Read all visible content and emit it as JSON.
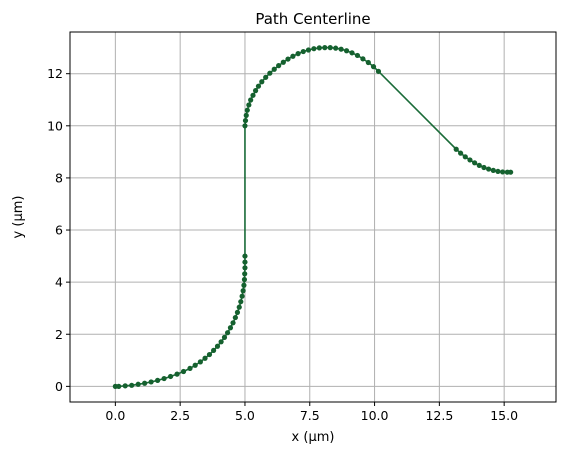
{
  "chart_data": {
    "type": "line",
    "title": "Path Centerline",
    "xlabel": "x (µm)",
    "ylabel": "y (µm)",
    "xlim": [
      -1.75,
      17.0
    ],
    "ylim": [
      -0.6,
      13.6
    ],
    "xticks": [
      0.0,
      2.5,
      5.0,
      7.5,
      10.0,
      12.5,
      15.0
    ],
    "xtick_labels": [
      "0.0",
      "2.5",
      "5.0",
      "7.5",
      "10.0",
      "12.5",
      "15.0"
    ],
    "yticks": [
      0,
      2,
      4,
      6,
      8,
      10,
      12
    ],
    "ytick_labels": [
      "0",
      "2",
      "4",
      "6",
      "8",
      "10",
      "12"
    ],
    "grid": true,
    "colors": {
      "line": "#1a6b38",
      "marker": "#15612f",
      "grid": "#b0b0b0"
    },
    "series": [
      {
        "points": [
          [
            0.0,
            0.0
          ],
          [
            0.13,
            0.0
          ],
          [
            0.38,
            0.02
          ],
          [
            0.63,
            0.04
          ],
          [
            0.88,
            0.08
          ],
          [
            1.13,
            0.12
          ],
          [
            1.38,
            0.17
          ],
          [
            1.63,
            0.23
          ],
          [
            1.88,
            0.3
          ],
          [
            2.13,
            0.38
          ],
          [
            2.38,
            0.47
          ],
          [
            2.63,
            0.57
          ],
          [
            2.88,
            0.69
          ],
          [
            3.08,
            0.81
          ],
          [
            3.28,
            0.94
          ],
          [
            3.46,
            1.08
          ],
          [
            3.63,
            1.22
          ],
          [
            3.79,
            1.38
          ],
          [
            3.94,
            1.54
          ],
          [
            4.08,
            1.71
          ],
          [
            4.21,
            1.88
          ],
          [
            4.33,
            2.06
          ],
          [
            4.44,
            2.25
          ],
          [
            4.54,
            2.44
          ],
          [
            4.63,
            2.64
          ],
          [
            4.71,
            2.84
          ],
          [
            4.78,
            3.04
          ],
          [
            4.84,
            3.25
          ],
          [
            4.89,
            3.46
          ],
          [
            4.93,
            3.67
          ],
          [
            4.96,
            3.88
          ],
          [
            4.98,
            4.1
          ],
          [
            4.99,
            4.32
          ],
          [
            5.0,
            4.55
          ],
          [
            5.0,
            4.77
          ],
          [
            5.0,
            5.0
          ],
          [
            5.0,
            10.0
          ],
          [
            5.02,
            10.2
          ],
          [
            5.05,
            10.4
          ],
          [
            5.09,
            10.6
          ],
          [
            5.15,
            10.8
          ],
          [
            5.22,
            10.99
          ],
          [
            5.31,
            11.17
          ],
          [
            5.41,
            11.35
          ],
          [
            5.52,
            11.52
          ],
          [
            5.65,
            11.69
          ],
          [
            5.8,
            11.86
          ],
          [
            5.96,
            12.02
          ],
          [
            6.13,
            12.17
          ],
          [
            6.3,
            12.31
          ],
          [
            6.48,
            12.44
          ],
          [
            6.66,
            12.56
          ],
          [
            6.85,
            12.67
          ],
          [
            7.05,
            12.77
          ],
          [
            7.25,
            12.85
          ],
          [
            7.45,
            12.91
          ],
          [
            7.66,
            12.96
          ],
          [
            7.87,
            12.99
          ],
          [
            8.08,
            13.0
          ],
          [
            8.29,
            13.0
          ],
          [
            8.5,
            12.98
          ],
          [
            8.71,
            12.94
          ],
          [
            8.92,
            12.88
          ],
          [
            9.13,
            12.8
          ],
          [
            9.34,
            12.7
          ],
          [
            9.55,
            12.57
          ],
          [
            9.76,
            12.43
          ],
          [
            9.96,
            12.27
          ],
          [
            10.15,
            12.09
          ],
          [
            13.15,
            9.1
          ],
          [
            13.32,
            8.95
          ],
          [
            13.5,
            8.81
          ],
          [
            13.68,
            8.69
          ],
          [
            13.86,
            8.58
          ],
          [
            14.04,
            8.48
          ],
          [
            14.22,
            8.4
          ],
          [
            14.4,
            8.34
          ],
          [
            14.58,
            8.29
          ],
          [
            14.76,
            8.25
          ],
          [
            14.94,
            8.23
          ],
          [
            15.12,
            8.22
          ],
          [
            15.25,
            8.22
          ]
        ]
      }
    ]
  }
}
